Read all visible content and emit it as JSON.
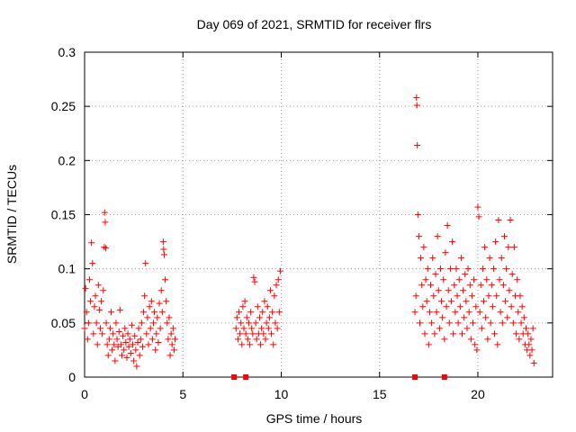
{
  "chart_data": {
    "type": "scatter",
    "title": "Day 069 of 2021, SRMTID for receiver flrs",
    "xlabel": "GPS time / hours",
    "ylabel": "SRMTID / TECUs",
    "xlim": [
      0,
      23.8
    ],
    "ylim": [
      0,
      0.3
    ],
    "x_ticks": [
      "0",
      "5",
      "10",
      "15",
      "20"
    ],
    "x_tick_values": [
      0,
      5,
      10,
      15,
      20
    ],
    "y_ticks": [
      "0",
      "0.05",
      "0.1",
      "0.15",
      "0.2",
      "0.25",
      "0.3"
    ],
    "y_tick_values": [
      0,
      0.05,
      0.1,
      0.15,
      0.2,
      0.25,
      0.3
    ],
    "grid": true,
    "marker": "plus",
    "color": "#ff0000",
    "zero_markers_x": [
      7.6,
      8.2,
      16.8,
      18.3
    ],
    "series": [
      {
        "values": [
          [
            0.0,
            0.045
          ],
          [
            0.05,
            0.082
          ],
          [
            0.1,
            0.06
          ],
          [
            0.15,
            0.035
          ],
          [
            0.2,
            0.05
          ],
          [
            0.25,
            0.09
          ],
          [
            0.3,
            0.07
          ],
          [
            0.35,
            0.124
          ],
          [
            0.4,
            0.105
          ],
          [
            0.45,
            0.04
          ],
          [
            0.5,
            0.065
          ],
          [
            0.55,
            0.075
          ],
          [
            0.6,
            0.05
          ],
          [
            0.65,
            0.03
          ],
          [
            0.7,
            0.085
          ],
          [
            0.75,
            0.062
          ],
          [
            0.8,
            0.045
          ],
          [
            0.85,
            0.07
          ],
          [
            0.9,
            0.04
          ],
          [
            0.95,
            0.08
          ],
          [
            1.0,
            0.12
          ],
          [
            1.02,
            0.152
          ],
          [
            1.05,
            0.143
          ],
          [
            1.08,
            0.119
          ],
          [
            1.1,
            0.05
          ],
          [
            1.15,
            0.03
          ],
          [
            1.2,
            0.02
          ],
          [
            1.25,
            0.035
          ],
          [
            1.3,
            0.045
          ],
          [
            1.35,
            0.06
          ],
          [
            1.4,
            0.025
          ],
          [
            1.45,
            0.04
          ],
          [
            1.5,
            0.03
          ],
          [
            1.55,
            0.015
          ],
          [
            1.6,
            0.05
          ],
          [
            1.65,
            0.035
          ],
          [
            1.7,
            0.028
          ],
          [
            1.75,
            0.042
          ],
          [
            1.8,
            0.062
          ],
          [
            1.85,
            0.03
          ],
          [
            1.9,
            0.02
          ],
          [
            1.95,
            0.038
          ],
          [
            2.0,
            0.025
          ],
          [
            2.05,
            0.045
          ],
          [
            2.1,
            0.032
          ],
          [
            2.15,
            0.018
          ],
          [
            2.2,
            0.04
          ],
          [
            2.25,
            0.028
          ],
          [
            2.3,
            0.035
          ],
          [
            2.35,
            0.022
          ],
          [
            2.4,
            0.048
          ],
          [
            2.45,
            0.03
          ],
          [
            2.5,
            0.015
          ],
          [
            2.55,
            0.038
          ],
          [
            2.6,
            0.025
          ],
          [
            2.65,
            0.01
          ],
          [
            2.7,
            0.032
          ],
          [
            2.75,
            0.045
          ],
          [
            2.8,
            0.02
          ],
          [
            2.85,
            0.035
          ],
          [
            2.9,
            0.05
          ],
          [
            2.95,
            0.028
          ],
          [
            3.0,
            0.06
          ],
          [
            3.05,
            0.075
          ],
          [
            3.1,
            0.105
          ],
          [
            3.15,
            0.04
          ],
          [
            3.2,
            0.055
          ],
          [
            3.25,
            0.03
          ],
          [
            3.3,
            0.065
          ],
          [
            3.35,
            0.045
          ],
          [
            3.4,
            0.07
          ],
          [
            3.45,
            0.035
          ],
          [
            3.5,
            0.05
          ],
          [
            3.55,
            0.06
          ],
          [
            3.6,
            0.025
          ],
          [
            3.65,
            0.04
          ],
          [
            3.7,
            0.055
          ],
          [
            3.75,
            0.032
          ],
          [
            3.8,
            0.068
          ],
          [
            3.85,
            0.045
          ],
          [
            3.9,
            0.08
          ],
          [
            3.95,
            0.06
          ],
          [
            4.0,
            0.125
          ],
          [
            4.02,
            0.118
          ],
          [
            4.05,
            0.113
          ],
          [
            4.1,
            0.09
          ],
          [
            4.15,
            0.07
          ],
          [
            4.2,
            0.05
          ],
          [
            4.25,
            0.035
          ],
          [
            4.3,
            0.055
          ],
          [
            4.35,
            0.02
          ],
          [
            4.4,
            0.04
          ],
          [
            4.45,
            0.03
          ],
          [
            4.5,
            0.045
          ],
          [
            4.55,
            0.025
          ],
          [
            4.6,
            0.035
          ],
          [
            7.7,
            0.045
          ],
          [
            7.75,
            0.055
          ],
          [
            7.8,
            0.035
          ],
          [
            7.85,
            0.06
          ],
          [
            7.9,
            0.04
          ],
          [
            7.95,
            0.05
          ],
          [
            8.0,
            0.03
          ],
          [
            8.05,
            0.065
          ],
          [
            8.1,
            0.045
          ],
          [
            8.15,
            0.07
          ],
          [
            8.2,
            0.04
          ],
          [
            8.25,
            0.055
          ],
          [
            8.3,
            0.035
          ],
          [
            8.35,
            0.05
          ],
          [
            8.4,
            0.03
          ],
          [
            8.45,
            0.06
          ],
          [
            8.5,
            0.045
          ],
          [
            8.55,
            0.04
          ],
          [
            8.6,
            0.092
          ],
          [
            8.65,
            0.088
          ],
          [
            8.7,
            0.05
          ],
          [
            8.75,
            0.035
          ],
          [
            8.8,
            0.065
          ],
          [
            8.85,
            0.04
          ],
          [
            8.9,
            0.055
          ],
          [
            8.95,
            0.03
          ],
          [
            9.0,
            0.045
          ],
          [
            9.05,
            0.06
          ],
          [
            9.1,
            0.04
          ],
          [
            9.15,
            0.07
          ],
          [
            9.2,
            0.035
          ],
          [
            9.25,
            0.05
          ],
          [
            9.3,
            0.065
          ],
          [
            9.35,
            0.045
          ],
          [
            9.4,
            0.055
          ],
          [
            9.45,
            0.08
          ],
          [
            9.5,
            0.04
          ],
          [
            9.55,
            0.06
          ],
          [
            9.6,
            0.03
          ],
          [
            9.65,
            0.075
          ],
          [
            9.7,
            0.05
          ],
          [
            9.75,
            0.085
          ],
          [
            9.8,
            0.045
          ],
          [
            9.85,
            0.09
          ],
          [
            9.9,
            0.06
          ],
          [
            9.95,
            0.098
          ],
          [
            16.8,
            0.06
          ],
          [
            16.85,
            0.075
          ],
          [
            16.88,
            0.258
          ],
          [
            16.9,
            0.251
          ],
          [
            16.92,
            0.214
          ],
          [
            16.95,
            0.15
          ],
          [
            17.0,
            0.13
          ],
          [
            17.05,
            0.05
          ],
          [
            17.1,
            0.11
          ],
          [
            17.15,
            0.085
          ],
          [
            17.2,
            0.065
          ],
          [
            17.25,
            0.12
          ],
          [
            17.3,
            0.04
          ],
          [
            17.35,
            0.09
          ],
          [
            17.4,
            0.07
          ],
          [
            17.45,
            0.1
          ],
          [
            17.5,
            0.03
          ],
          [
            17.55,
            0.06
          ],
          [
            17.6,
            0.085
          ],
          [
            17.65,
            0.05
          ],
          [
            17.7,
            0.11
          ],
          [
            17.75,
            0.075
          ],
          [
            17.8,
            0.04
          ],
          [
            17.85,
            0.095
          ],
          [
            17.9,
            0.06
          ],
          [
            17.95,
            0.13
          ],
          [
            18.0,
            0.08
          ],
          [
            18.05,
            0.045
          ],
          [
            18.1,
            0.1
          ],
          [
            18.15,
            0.07
          ],
          [
            18.2,
            0.055
          ],
          [
            18.25,
            0.09
          ],
          [
            18.3,
            0.035
          ],
          [
            18.35,
            0.115
          ],
          [
            18.4,
            0.065
          ],
          [
            18.45,
            0.14
          ],
          [
            18.5,
            0.08
          ],
          [
            18.55,
            0.05
          ],
          [
            18.6,
            0.1
          ],
          [
            18.65,
            0.07
          ],
          [
            18.7,
            0.125
          ],
          [
            18.75,
            0.04
          ],
          [
            18.8,
            0.085
          ],
          [
            18.85,
            0.06
          ],
          [
            18.9,
            0.1
          ],
          [
            18.95,
            0.075
          ],
          [
            19.0,
            0.05
          ],
          [
            19.05,
            0.09
          ],
          [
            19.1,
            0.065
          ],
          [
            19.15,
            0.11
          ],
          [
            19.2,
            0.04
          ],
          [
            19.25,
            0.08
          ],
          [
            19.3,
            0.055
          ],
          [
            19.35,
            0.095
          ],
          [
            19.4,
            0.07
          ],
          [
            19.45,
            0.045
          ],
          [
            19.5,
            0.1
          ],
          [
            19.55,
            0.06
          ],
          [
            19.6,
            0.085
          ],
          [
            19.65,
            0.035
          ],
          [
            19.7,
            0.075
          ],
          [
            19.75,
            0.05
          ],
          [
            19.8,
            0.09
          ],
          [
            19.85,
            0.03
          ],
          [
            19.9,
            0.065
          ],
          [
            19.95,
            0.025
          ],
          [
            20.0,
            0.157
          ],
          [
            20.05,
            0.148
          ],
          [
            20.1,
            0.06
          ],
          [
            20.15,
            0.085
          ],
          [
            20.2,
            0.045
          ],
          [
            20.25,
            0.1
          ],
          [
            20.3,
            0.07
          ],
          [
            20.35,
            0.12
          ],
          [
            20.4,
            0.055
          ],
          [
            20.45,
            0.09
          ],
          [
            20.5,
            0.035
          ],
          [
            20.55,
            0.075
          ],
          [
            20.6,
            0.11
          ],
          [
            20.65,
            0.05
          ],
          [
            20.7,
            0.085
          ],
          [
            20.75,
            0.065
          ],
          [
            20.8,
            0.1
          ],
          [
            20.85,
            0.04
          ],
          [
            20.9,
            0.125
          ],
          [
            20.95,
            0.075
          ],
          [
            21.0,
            0.03
          ],
          [
            21.05,
            0.145
          ],
          [
            21.1,
            0.09
          ],
          [
            21.15,
            0.06
          ],
          [
            21.2,
            0.11
          ],
          [
            21.25,
            0.05
          ],
          [
            21.3,
            0.085
          ],
          [
            21.35,
            0.13
          ],
          [
            21.4,
            0.07
          ],
          [
            21.45,
            0.1
          ],
          [
            21.5,
            0.055
          ],
          [
            21.55,
            0.12
          ],
          [
            21.6,
            0.08
          ],
          [
            21.65,
            0.145
          ],
          [
            21.7,
            0.065
          ],
          [
            21.75,
            0.095
          ],
          [
            21.8,
            0.05
          ],
          [
            21.85,
            0.12
          ],
          [
            21.9,
            0.075
          ],
          [
            21.95,
            0.04
          ],
          [
            22.0,
            0.09
          ],
          [
            22.05,
            0.06
          ],
          [
            22.1,
            0.035
          ],
          [
            22.15,
            0.075
          ],
          [
            22.2,
            0.05
          ],
          [
            22.25,
            0.065
          ],
          [
            22.3,
            0.04
          ],
          [
            22.35,
            0.055
          ],
          [
            22.4,
            0.03
          ],
          [
            22.45,
            0.045
          ],
          [
            22.5,
            0.025
          ],
          [
            22.55,
            0.04
          ],
          [
            22.6,
            0.03
          ],
          [
            22.65,
            0.02
          ],
          [
            22.7,
            0.035
          ],
          [
            22.75,
            0.025
          ],
          [
            22.8,
            0.045
          ],
          [
            22.85,
            0.013
          ]
        ]
      }
    ]
  }
}
